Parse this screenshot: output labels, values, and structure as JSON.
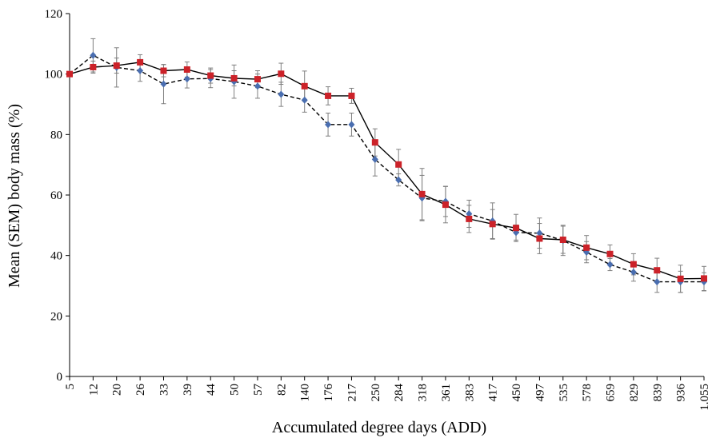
{
  "chart_data": {
    "type": "line",
    "title": "",
    "xlabel": "Accumulated degree days (ADD)",
    "ylabel": "Mean (SEM) body mass (%)",
    "categories": [
      "5",
      "12",
      "20",
      "26",
      "33",
      "39",
      "44",
      "50",
      "57",
      "82",
      "140",
      "176",
      "217",
      "250",
      "284",
      "318",
      "361",
      "383",
      "417",
      "450",
      "497",
      "535",
      "578",
      "659",
      "829",
      "839",
      "936",
      "1.055"
    ],
    "ylim": [
      0,
      120
    ],
    "yticks": [
      0,
      20,
      40,
      60,
      80,
      100,
      120
    ],
    "grid": false,
    "legend": "none",
    "series": [
      {
        "color": "#cc2229",
        "line_style": "solid",
        "marker": "square",
        "values": [
          100,
          102.3,
          102.8,
          103.9,
          101.1,
          101.5,
          99.5,
          98.6,
          98.3,
          100.1,
          96.0,
          92.8,
          92.8,
          77.4,
          70.1,
          60.3,
          56.8,
          52.1,
          50.4,
          49.1,
          45.6,
          45.2,
          42.6,
          40.5,
          37.1,
          35.1,
          32.3,
          32.4
        ],
        "errors": [
          0,
          2.0,
          2.5,
          2.5,
          2.0,
          2.5,
          2.5,
          2.5,
          2.8,
          3.5,
          5.0,
          3.0,
          2.5,
          4.5,
          5.0,
          8.5,
          6.0,
          4.5,
          4.8,
          4.5,
          5.0,
          4.5,
          4.0,
          3.0,
          3.5,
          4.0,
          4.5,
          4.0
        ]
      },
      {
        "color": "#4a6eb0",
        "line_style": "dashed",
        "marker": "diamond",
        "values": [
          100,
          106.2,
          102.2,
          101.1,
          96.7,
          98.4,
          98.5,
          97.5,
          96.0,
          93.3,
          91.4,
          83.3,
          83.3,
          71.8,
          65.0,
          59.0,
          57.9,
          53.8,
          51.4,
          47.6,
          47.4,
          45.0,
          41.1,
          37.0,
          34.5,
          31.3,
          31.3,
          31.3
        ],
        "errors": [
          0,
          5.5,
          6.5,
          3.5,
          6.5,
          3.0,
          3.0,
          5.5,
          4.0,
          4.0,
          4.0,
          3.8,
          3.8,
          5.5,
          2.0,
          7.5,
          5.0,
          4.5,
          6.0,
          2.5,
          5.0,
          5.0,
          3.5,
          2.0,
          3.0,
          3.5,
          3.5,
          3.0
        ]
      }
    ]
  }
}
